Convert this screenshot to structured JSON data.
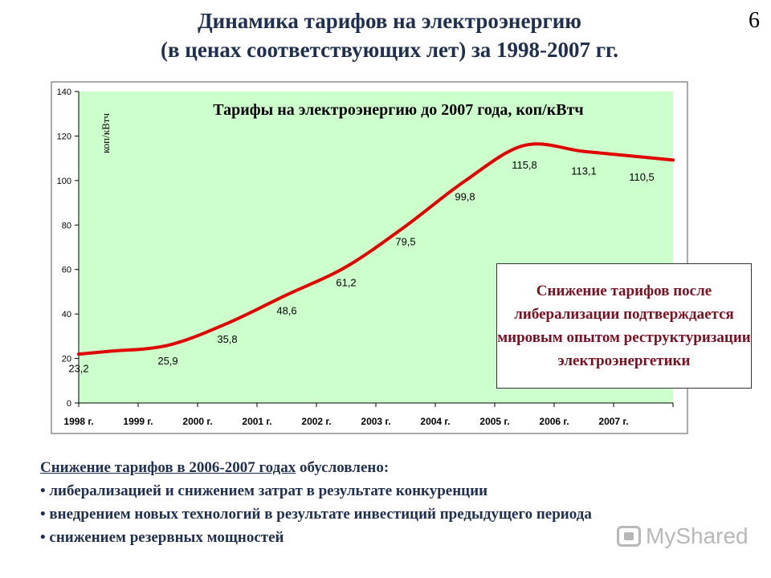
{
  "slide": {
    "title_line1": "Динамика тарифов на электроэнергию",
    "title_line2": "(в ценах соответствующих лет) за 1998-2007 гг.",
    "page_number": "6"
  },
  "chart_data": {
    "type": "line",
    "title": "Тарифы на электроэнергию до 2007 года, коп/кВтч",
    "ylabel": "коп/кВтч",
    "xlabel": "",
    "categories": [
      "1998 г.",
      "1999 г.",
      "2000 г.",
      "2001 г.",
      "2002 г.",
      "2003 г.",
      "2004 г.",
      "2005 г.",
      "2006 г.",
      "2007 г."
    ],
    "values": [
      23.2,
      25.9,
      35.8,
      48.6,
      61.2,
      79.5,
      99.8,
      115.8,
      113.1,
      110.5
    ],
    "data_labels": [
      "23,2",
      "25,9",
      "35,8",
      "48,6",
      "61,2",
      "79,5",
      "99,8",
      "115,8",
      "113,1",
      "110,5"
    ],
    "ylim": [
      0,
      140
    ],
    "yticks": [
      0,
      20,
      40,
      60,
      80,
      100,
      120,
      140
    ],
    "grid": false,
    "colors": {
      "plot_background": "#ccffcc",
      "line": "#e00000"
    }
  },
  "callout": {
    "text": "Снижение тарифов после либерализации подтверждается мировым опытом реструктуризации электроэнергетики"
  },
  "notes": {
    "heading_underlined": "Снижение тарифов в 2006-2007 годах",
    "heading_rest": " обусловлено:",
    "items": [
      "• либерализацией и снижением затрат в результате конкуренции",
      "• внедрением новых технологий в результате инвестиций предыдущего периода",
      "• снижением резервных мощностей"
    ]
  },
  "watermark": {
    "text": "MyShared",
    "icon": "projector-screen-icon"
  }
}
